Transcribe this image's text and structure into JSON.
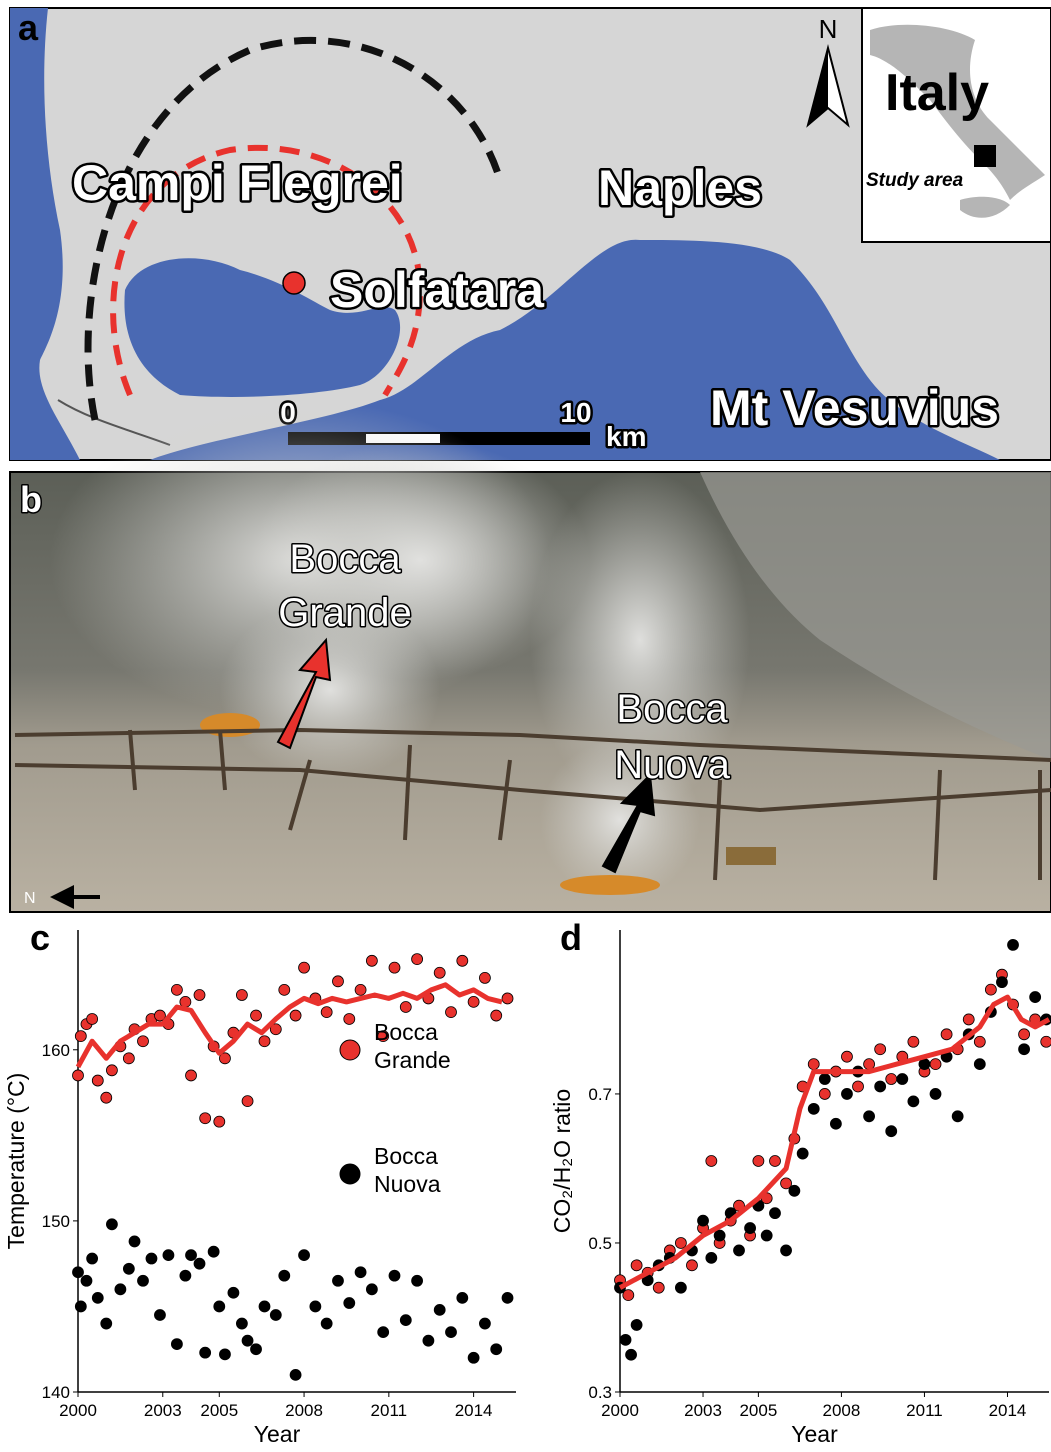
{
  "map": {
    "panel": "a",
    "north": "N",
    "places": {
      "campi_flegrei": "Campi Flegrei",
      "naples": "Naples",
      "solfatara": "Solfatara",
      "vesuvius": "Mt Vesuvius"
    },
    "scale": {
      "start": "0",
      "end": "10",
      "unit": "km"
    },
    "inset": {
      "country": "Italy",
      "marker": "Study area"
    }
  },
  "photo": {
    "panel": "b",
    "north": "N",
    "bocca_grande": [
      "Bocca",
      "Grande"
    ],
    "bocca_nuova": [
      "Bocca",
      "Nuova"
    ]
  },
  "chart_data": [
    {
      "type": "scatter",
      "panel": "c",
      "x_label": "Year",
      "y_label": "Temperature (°C)",
      "xlim": [
        2000,
        2015.5
      ],
      "ylim": [
        140,
        167
      ],
      "xticks": [
        2000,
        2003,
        2005,
        2008,
        2011,
        2014
      ],
      "yticks": [
        140,
        150,
        160
      ],
      "legend": "center",
      "series": [
        {
          "name": "Bocca Grande",
          "color": "#e8322d",
          "x": [
            2000.0,
            2000.1,
            2000.3,
            2000.5,
            2000.7,
            2001.0,
            2001.2,
            2001.5,
            2001.8,
            2002.0,
            2002.3,
            2002.6,
            2002.9,
            2003.2,
            2003.5,
            2003.8,
            2004.0,
            2004.3,
            2004.5,
            2004.8,
            2005.0,
            2005.2,
            2005.5,
            2005.8,
            2006.0,
            2006.3,
            2006.6,
            2007.0,
            2007.3,
            2007.7,
            2008.0,
            2008.4,
            2008.8,
            2009.2,
            2009.6,
            2010.0,
            2010.4,
            2010.8,
            2011.2,
            2011.6,
            2012.0,
            2012.4,
            2012.8,
            2013.2,
            2013.6,
            2014.0,
            2014.4,
            2014.8,
            2015.2
          ],
          "values": [
            158.5,
            160.8,
            161.5,
            161.8,
            158.2,
            157.2,
            158.8,
            160.2,
            159.5,
            161.2,
            160.5,
            161.8,
            162.0,
            161.5,
            163.5,
            162.8,
            158.5,
            163.2,
            156.0,
            160.2,
            155.8,
            159.5,
            161.0,
            163.2,
            157.0,
            162.0,
            160.5,
            161.2,
            163.5,
            162.0,
            164.8,
            163.0,
            162.2,
            164.0,
            161.8,
            163.5,
            165.2,
            160.8,
            164.8,
            162.5,
            165.3,
            163.0,
            164.5,
            162.2,
            165.2,
            162.8,
            164.2,
            162.0,
            163.0
          ],
          "trend": {
            "x": [
              2000,
              2000.5,
              2001,
              2001.5,
              2002,
              2002.5,
              2003,
              2003.5,
              2004,
              2004.5,
              2005,
              2005.5,
              2006,
              2006.5,
              2007,
              2007.5,
              2008,
              2008.5,
              2009,
              2009.5,
              2010,
              2010.5,
              2011,
              2011.5,
              2012,
              2012.5,
              2013,
              2013.5,
              2014,
              2014.5,
              2015
            ],
            "values": [
              159,
              160.5,
              159.5,
              160.5,
              161,
              161.5,
              161.5,
              162.5,
              162.3,
              161,
              159.8,
              160.5,
              161.5,
              161,
              161.8,
              162.5,
              163,
              162.7,
              163,
              162.8,
              163,
              163.2,
              163,
              163.3,
              163,
              163.5,
              163.8,
              163.2,
              163.5,
              163,
              162.8
            ]
          }
        },
        {
          "name": "Bocca Nuova",
          "color": "#3badе3",
          "x": [
            2000.0,
            2000.1,
            2000.3,
            2000.5,
            2000.7,
            2001.0,
            2001.2,
            2001.5,
            2001.8,
            2002.0,
            2002.3,
            2002.6,
            2002.9,
            2003.2,
            2003.5,
            2003.8,
            2004.0,
            2004.3,
            2004.5,
            2004.8,
            2005.0,
            2005.2,
            2005.5,
            2005.8,
            2006.0,
            2006.3,
            2006.6,
            2007.0,
            2007.3,
            2007.7,
            2008.0,
            2008.4,
            2008.8,
            2009.2,
            2009.6,
            2010.0,
            2010.4,
            2010.8,
            2011.2,
            2011.6,
            2012.0,
            2012.4,
            2012.8,
            2013.2,
            2013.6,
            2014.0,
            2014.4,
            2014.8,
            2015.2
          ],
          "values": [
            147.0,
            145.0,
            146.5,
            147.8,
            145.5,
            144.0,
            149.8,
            146.0,
            147.2,
            148.8,
            146.5,
            147.8,
            144.5,
            148.0,
            142.8,
            146.8,
            148.0,
            147.5,
            142.3,
            148.2,
            145.0,
            142.2,
            145.8,
            144.0,
            143.0,
            142.5,
            145.0,
            144.5,
            146.8,
            141.0,
            148.0,
            145.0,
            144.0,
            146.5,
            145.2,
            147.0,
            146.0,
            143.5,
            146.8,
            144.2,
            146.5,
            143.0,
            144.8,
            143.5,
            145.5,
            142.0,
            144.0,
            142.5,
            145.5
          ],
          "trend": {
            "x": [
              2000,
              2000.5,
              2001,
              2001.5,
              2002,
              2002.5,
              2003,
              2003.5,
              2004,
              2004.5,
              2005,
              2005.5,
              2006,
              2006.5,
              2007,
              2007.5,
              2008,
              2008.5,
              2009,
              2009.5,
              2010,
              2010.5,
              2011,
              2011.5,
              2012,
              2012.5,
              2013,
              2013.5,
              2014,
              2014.5,
              2015
            ],
            "values": [
              146.5,
              146,
              146.5,
              147,
              147.5,
              147.5,
              147.3,
              147.5,
              147,
              146,
              145,
              145.2,
              144.5,
              143.8,
              144.8,
              145.3,
              146,
              145.5,
              145.3,
              145.6,
              145.8,
              145.5,
              145.3,
              145,
              145,
              144.5,
              144.3,
              144.5,
              144.2,
              144.5,
              144.8
            ]
          }
        }
      ]
    },
    {
      "type": "scatter",
      "panel": "d",
      "x_label": "Year",
      "y_label": "CO₂/H₂O ratio",
      "xlim": [
        2000,
        2015.5
      ],
      "ylim": [
        0.3,
        0.92
      ],
      "xticks": [
        2000,
        2003,
        2005,
        2008,
        2011,
        2014
      ],
      "yticks": [
        0.3,
        0.5,
        0.7
      ],
      "series": [
        {
          "color": "#e8322d",
          "x": [
            2000.0,
            2000.3,
            2000.6,
            2001.0,
            2001.4,
            2001.8,
            2002.2,
            2002.6,
            2003.0,
            2003.3,
            2003.6,
            2004.0,
            2004.3,
            2004.7,
            2005.0,
            2005.3,
            2005.6,
            2006.0,
            2006.3,
            2006.6,
            2007.0,
            2007.4,
            2007.8,
            2008.2,
            2008.6,
            2009.0,
            2009.4,
            2009.8,
            2010.2,
            2010.6,
            2011.0,
            2011.4,
            2011.8,
            2012.2,
            2012.6,
            2013.0,
            2013.4,
            2013.8,
            2014.2,
            2014.6,
            2015.0,
            2015.4
          ],
          "values": [
            0.45,
            0.43,
            0.47,
            0.46,
            0.44,
            0.49,
            0.5,
            0.47,
            0.52,
            0.61,
            0.5,
            0.53,
            0.55,
            0.51,
            0.61,
            0.56,
            0.61,
            0.58,
            0.64,
            0.71,
            0.74,
            0.7,
            0.73,
            0.75,
            0.71,
            0.74,
            0.76,
            0.72,
            0.75,
            0.77,
            0.73,
            0.74,
            0.78,
            0.76,
            0.8,
            0.77,
            0.84,
            0.86,
            0.82,
            0.78,
            0.8,
            0.77
          ],
          "trend": {
            "x": [
              2000,
              2001,
              2002,
              2003,
              2004,
              2005,
              2005.5,
              2006,
              2006.5,
              2007,
              2008,
              2009,
              2010,
              2011,
              2012,
              2013,
              2013.5,
              2014,
              2014.5,
              2015,
              2015.5
            ],
            "values": [
              0.44,
              0.46,
              0.48,
              0.51,
              0.53,
              0.56,
              0.58,
              0.6,
              0.68,
              0.73,
              0.73,
              0.73,
              0.74,
              0.75,
              0.76,
              0.79,
              0.82,
              0.83,
              0.8,
              0.79,
              0.8
            ]
          }
        },
        {
          "color": "#3badе3",
          "x": [
            2000.0,
            2000.2,
            2000.4,
            2000.6,
            2001.0,
            2001.4,
            2001.8,
            2002.2,
            2002.6,
            2003.0,
            2003.3,
            2003.6,
            2004.0,
            2004.3,
            2004.7,
            2005.0,
            2005.3,
            2005.6,
            2006.0,
            2006.3,
            2006.6,
            2007.0,
            2007.4,
            2007.8,
            2008.2,
            2008.6,
            2009.0,
            2009.4,
            2009.8,
            2010.2,
            2010.6,
            2011.0,
            2011.4,
            2011.8,
            2012.2,
            2012.6,
            2013.0,
            2013.4,
            2013.8,
            2014.2,
            2014.6,
            2015.0,
            2015.4
          ],
          "values": [
            0.44,
            0.37,
            0.35,
            0.39,
            0.45,
            0.47,
            0.48,
            0.44,
            0.49,
            0.53,
            0.48,
            0.51,
            0.54,
            0.49,
            0.52,
            0.55,
            0.51,
            0.54,
            0.49,
            0.57,
            0.62,
            0.68,
            0.72,
            0.66,
            0.7,
            0.73,
            0.67,
            0.71,
            0.65,
            0.72,
            0.69,
            0.74,
            0.7,
            0.75,
            0.67,
            0.78,
            0.74,
            0.81,
            0.85,
            0.9,
            0.76,
            0.83,
            0.8
          ],
          "trend": {
            "x": [
              2000,
              2000.5,
              2001,
              2002,
              2003,
              2004,
              2005,
              2006,
              2006.5,
              2007,
              2008,
              2009,
              2010,
              2011,
              2012,
              2013,
              2014,
              2014.5,
              2015,
              2015.5
            ],
            "values": [
              0.42,
              0.45,
              0.46,
              0.48,
              0.5,
              0.52,
              0.53,
              0.56,
              0.6,
              0.69,
              0.7,
              0.7,
              0.71,
              0.72,
              0.74,
              0.76,
              0.8,
              0.78,
              0.77,
              0.79
            ]
          }
        }
      ]
    }
  ]
}
